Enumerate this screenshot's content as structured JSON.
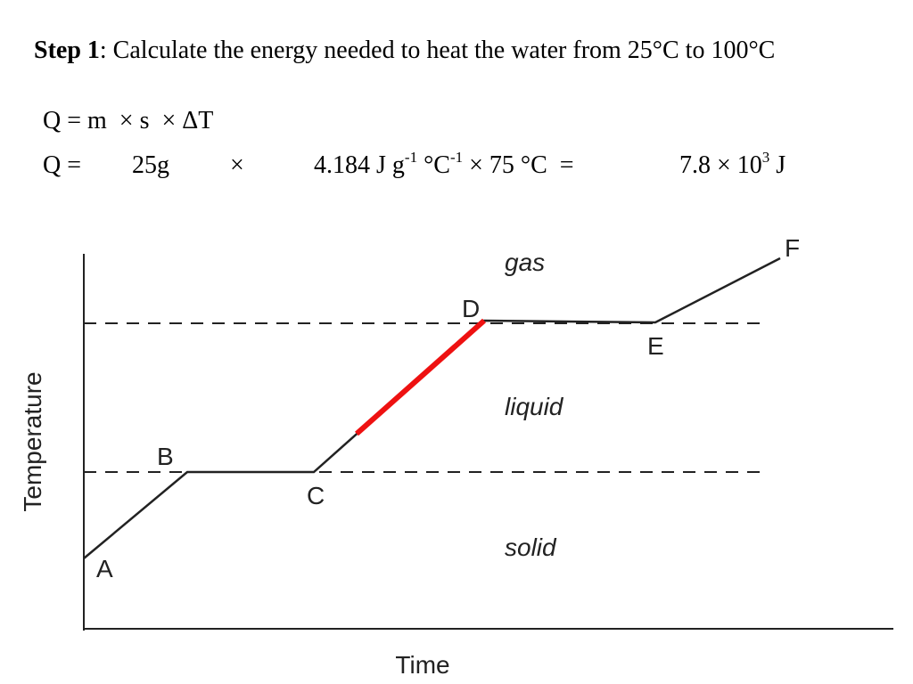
{
  "step": {
    "label": "Step 1",
    "text": ": Calculate the energy needed to heat the water from 25°C to 100°C"
  },
  "formula": "Q = m  × s  × ΔT",
  "calculation": {
    "lhs": "Q =",
    "mass": "25g",
    "times": "×",
    "heat": [
      "4.184 J g",
      "-1",
      " °C",
      "-1",
      " × 75 °C  ="
    ],
    "result": [
      "7.8 × 10",
      "3",
      " J"
    ]
  },
  "diagram": {
    "x_axis": "Time",
    "y_axis": "Temperature",
    "phases": {
      "gas": "gas",
      "liquid": "liquid",
      "solid": "solid"
    },
    "points": [
      "A",
      "B",
      "C",
      "D",
      "E",
      "F"
    ]
  }
}
